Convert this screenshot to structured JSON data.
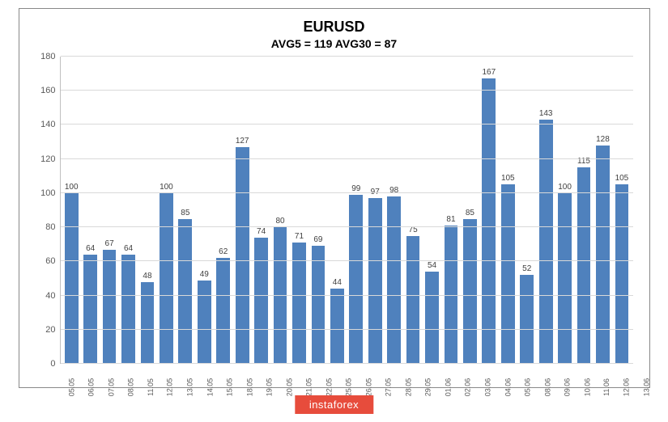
{
  "chart": {
    "type": "bar",
    "title": "EURUSD",
    "title_fontsize": 18,
    "subtitle": "AVG5 = 119 AVG30 = 87",
    "subtitle_fontsize": 14,
    "categories": [
      "05.05",
      "06.05",
      "07.05",
      "08.05",
      "11.05",
      "12.05",
      "13.05",
      "14.05",
      "15.05",
      "18.05",
      "19.05",
      "20.05",
      "21.05",
      "22.05",
      "25.05",
      "26.05",
      "27.05",
      "28.05",
      "29.05",
      "01.06",
      "02.06",
      "03.06",
      "04.06",
      "05.06",
      "08.06",
      "09.06",
      "10.06",
      "11.06",
      "12.06",
      "13.06"
    ],
    "values": [
      100,
      64,
      67,
      64,
      48,
      100,
      85,
      49,
      62,
      127,
      74,
      80,
      71,
      69,
      44,
      99,
      97,
      98,
      75,
      54,
      81,
      85,
      167,
      105,
      52,
      143,
      100,
      115,
      128,
      105
    ],
    "bar_color": "#4f81bd",
    "background_color": "#ffffff",
    "grid_color": "#d9d9d9",
    "border_color": "#888888",
    "axis_text_color": "#595959",
    "label_text_color": "#404040",
    "ylim": [
      0,
      180
    ],
    "ytick_step": 20,
    "yticks": [
      0,
      20,
      40,
      60,
      80,
      100,
      120,
      140,
      160,
      180
    ],
    "bar_width": 0.78,
    "data_label_fontsize": 10,
    "axis_label_fontsize": 11,
    "xaxis_label_fontsize": 9
  },
  "brand": {
    "label": "instaforex",
    "bg_color": "#e74c3c",
    "text_color": "#ffffff"
  }
}
